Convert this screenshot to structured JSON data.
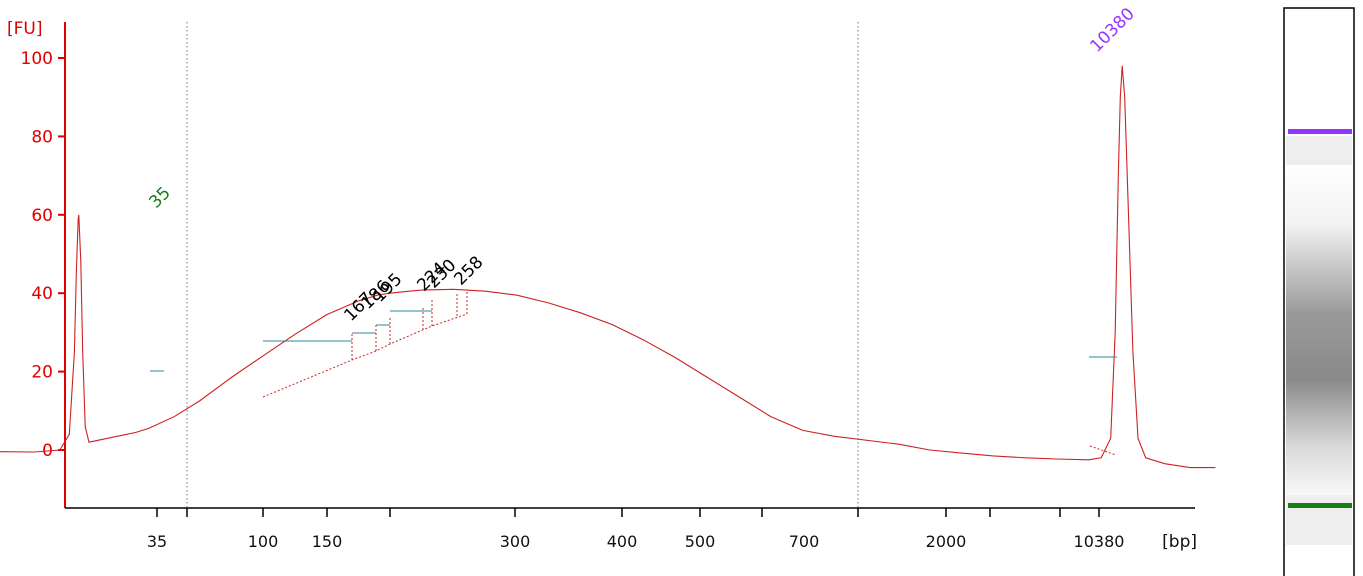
{
  "chart_data": {
    "type": "line",
    "y_unit": "[FU]",
    "x_unit": "[bp]",
    "yticks": [
      0,
      20,
      40,
      60,
      80,
      100
    ],
    "ylim": [
      -15,
      107
    ],
    "xticks": [
      "35",
      "100",
      "150",
      "300",
      "400",
      "500",
      "700",
      "2000",
      "10380"
    ],
    "marker_peaks": [
      {
        "label": "35",
        "color": "#148014",
        "fu": 60
      },
      {
        "label": "10380",
        "color": "#9933ff",
        "fu": 98
      }
    ],
    "region_peaks": [
      "167",
      "186",
      "195",
      "224",
      "230",
      "258"
    ],
    "series": [
      {
        "color": "#cc2222",
        "points": [
          [
            -5.5,
            0
          ],
          [
            -5,
            -0.2
          ],
          [
            -4.2,
            -0.4
          ],
          [
            -3.6,
            -0.5
          ],
          [
            -3.2,
            0
          ],
          [
            -3.05,
            4
          ],
          [
            -2.97,
            25
          ],
          [
            -2.94,
            45
          ],
          [
            -2.91,
            59
          ],
          [
            -2.9,
            60
          ],
          [
            -2.87,
            48
          ],
          [
            -2.84,
            25
          ],
          [
            -2.8,
            6
          ],
          [
            -2.74,
            2
          ],
          [
            -2.3,
            3.5
          ],
          [
            -2,
            4.5
          ],
          [
            -1.8,
            5.5
          ],
          [
            -1.4,
            8.5
          ],
          [
            -1,
            12.5
          ],
          [
            -0.5,
            18.5
          ],
          [
            0,
            24
          ],
          [
            0.5,
            29.5
          ],
          [
            1,
            34.5
          ],
          [
            1.5,
            38
          ],
          [
            1.8,
            39.5
          ],
          [
            2,
            40
          ],
          [
            2.3,
            40.5
          ],
          [
            2.5,
            40.8
          ],
          [
            3,
            41
          ],
          [
            3.5,
            40.5
          ],
          [
            4,
            39.5
          ],
          [
            4.5,
            37.5
          ],
          [
            5,
            35
          ],
          [
            5.5,
            32
          ],
          [
            6,
            28
          ],
          [
            6.5,
            23.5
          ],
          [
            7,
            18.5
          ],
          [
            7.5,
            13.5
          ],
          [
            8,
            8.5
          ],
          [
            8.5,
            5
          ],
          [
            9,
            3.5
          ],
          [
            10,
            1.5
          ],
          [
            10.5,
            0
          ],
          [
            11,
            -0.8
          ],
          [
            11.5,
            -1.5
          ],
          [
            12,
            -2
          ],
          [
            12.5,
            -2.3
          ],
          [
            13,
            -2.5
          ],
          [
            13.2,
            -2
          ],
          [
            13.35,
            3
          ],
          [
            13.42,
            30
          ],
          [
            13.47,
            70
          ],
          [
            13.5,
            90
          ],
          [
            13.53,
            98
          ],
          [
            13.57,
            90
          ],
          [
            13.63,
            60
          ],
          [
            13.7,
            25
          ],
          [
            13.78,
            3
          ],
          [
            13.9,
            -2
          ],
          [
            14.2,
            -3.5
          ],
          [
            14.6,
            -4.5
          ],
          [
            15,
            -4.5
          ]
        ]
      }
    ]
  }
}
